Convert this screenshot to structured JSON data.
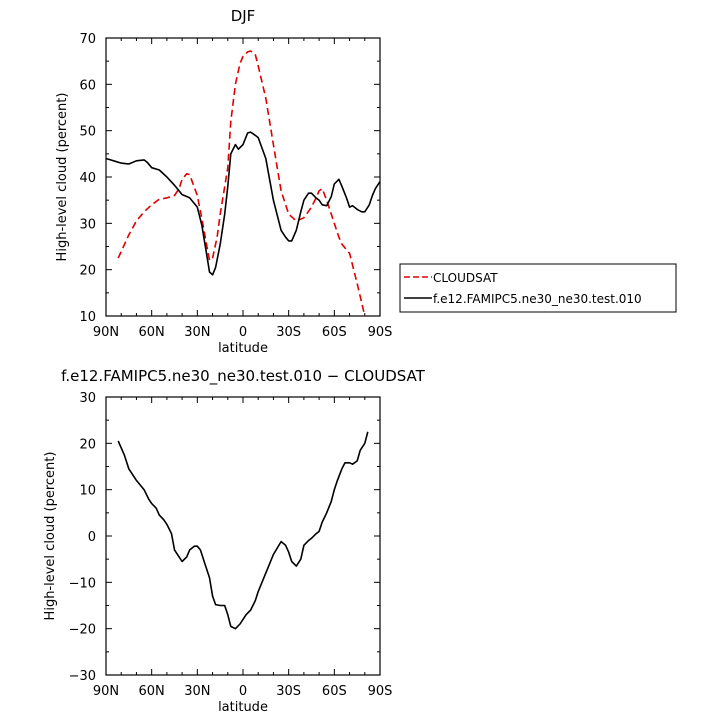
{
  "chart_data": [
    {
      "type": "line",
      "title": "DJF",
      "xlabel": "latitude",
      "ylabel": "High-level cloud (percent)",
      "xlim": [
        -90,
        90
      ],
      "ylim": [
        10,
        70
      ],
      "x_tick_labels": [
        "90N",
        "60N",
        "30N",
        "0",
        "30S",
        "60S",
        "90S"
      ],
      "y_tick_labels": [
        "10",
        "20",
        "30",
        "40",
        "50",
        "60",
        "70"
      ],
      "legend_position": "right-middle",
      "series": [
        {
          "name": "CLOUDSAT",
          "color": "#e00000",
          "dash": "dashed",
          "x": [
            -82,
            -75,
            -70,
            -65,
            -60,
            -55,
            -50,
            -45,
            -42,
            -40,
            -37,
            -35,
            -30,
            -27,
            -24,
            -22,
            -20,
            -17,
            -15,
            -10,
            -8,
            -5,
            -2,
            0,
            3,
            5,
            8,
            10,
            15,
            20,
            25,
            30,
            35,
            40,
            45,
            48,
            50,
            52,
            55,
            60,
            63,
            65,
            70,
            75,
            80
          ],
          "y": [
            22.5,
            27.5,
            30.5,
            32.5,
            34,
            35.2,
            35.5,
            36,
            37.5,
            39.5,
            40.7,
            40.5,
            36,
            31,
            25.5,
            22,
            22.5,
            27,
            32,
            42,
            52,
            60,
            64.5,
            66,
            67,
            67.2,
            66.5,
            64,
            57,
            47,
            37,
            32,
            30.5,
            31.2,
            33.5,
            35.5,
            37,
            37.5,
            35,
            30,
            27,
            25.5,
            23.5,
            17,
            10
          ]
        },
        {
          "name": "f.e12.FAMIPC5.ne30_ne30.test.010",
          "color": "#000000",
          "dash": "solid",
          "x": [
            -90,
            -87,
            -85,
            -80,
            -75,
            -70,
            -65,
            -63,
            -60,
            -55,
            -50,
            -45,
            -42,
            -40,
            -37,
            -35,
            -30,
            -27,
            -24,
            -22,
            -20,
            -18,
            -15,
            -12,
            -10,
            -8,
            -5,
            -3,
            0,
            3,
            5,
            8,
            10,
            15,
            20,
            25,
            28,
            30,
            32,
            35,
            38,
            40,
            43,
            45,
            48,
            50,
            52,
            55,
            58,
            60,
            63,
            65,
            68,
            70,
            72,
            75,
            78,
            80,
            83,
            85,
            87,
            90
          ],
          "y": [
            44,
            43.7,
            43.5,
            43,
            42.8,
            43.5,
            43.7,
            43.2,
            42,
            41.5,
            40,
            38.2,
            37,
            36.2,
            35.8,
            35.5,
            33.5,
            29.5,
            23.5,
            19.5,
            18.9,
            20.5,
            25.5,
            32,
            38,
            45,
            47,
            46,
            47,
            49.5,
            49.7,
            49,
            48.5,
            44,
            35,
            28.5,
            27,
            26.2,
            26.2,
            28.5,
            32.5,
            35,
            36.5,
            36.5,
            35.5,
            35,
            34,
            33.8,
            35.8,
            38.5,
            39.5,
            38,
            35.5,
            33.5,
            33.8,
            33,
            32.5,
            32.5,
            34,
            36,
            37.5,
            39
          ]
        }
      ]
    },
    {
      "type": "line",
      "title": "f.e12.FAMIPC5.ne30_ne30.test.010 − CLOUDSAT",
      "xlabel": "latitude",
      "ylabel": "High-level cloud (percent)",
      "xlim": [
        -90,
        90
      ],
      "ylim": [
        -30,
        30
      ],
      "x_tick_labels": [
        "90N",
        "60N",
        "30N",
        "0",
        "30S",
        "60S",
        "90S"
      ],
      "y_tick_labels": [
        "−30",
        "−20",
        "−10",
        "0",
        "10",
        "20",
        "30"
      ],
      "series": [
        {
          "color": "#000000",
          "dash": "solid",
          "x": [
            -82,
            -78,
            -75,
            -72,
            -70,
            -65,
            -62,
            -60,
            -57,
            -55,
            -52,
            -50,
            -47,
            -45,
            -42,
            -40,
            -37,
            -35,
            -32,
            -30,
            -28,
            -25,
            -22,
            -20,
            -18,
            -15,
            -12,
            -10,
            -8,
            -5,
            -2,
            0,
            2,
            5,
            8,
            10,
            15,
            20,
            25,
            28,
            30,
            32,
            35,
            38,
            40,
            43,
            45,
            48,
            50,
            52,
            55,
            58,
            60,
            62,
            65,
            67,
            70,
            72,
            75,
            77,
            80,
            82
          ],
          "y": [
            20.5,
            17.5,
            14.5,
            13,
            12,
            10,
            8,
            7,
            6,
            4.5,
            3.5,
            2.5,
            0.5,
            -3,
            -4.5,
            -5.5,
            -4.5,
            -3,
            -2.2,
            -2.2,
            -3,
            -6,
            -9,
            -13,
            -14.8,
            -15,
            -15,
            -17,
            -19.5,
            -20,
            -19,
            -18,
            -17,
            -16,
            -14,
            -12,
            -8,
            -4,
            -1.2,
            -2,
            -3.5,
            -5.5,
            -6.5,
            -5,
            -2,
            -1,
            -0.5,
            0.5,
            1,
            3,
            5,
            7.5,
            10,
            12,
            14.5,
            15.8,
            15.8,
            15.5,
            16.2,
            18.5,
            20,
            22.5
          ]
        }
      ]
    }
  ],
  "legend": {
    "entries": [
      "CLOUDSAT",
      "f.e12.FAMIPC5.ne30_ne30.test.010"
    ]
  }
}
